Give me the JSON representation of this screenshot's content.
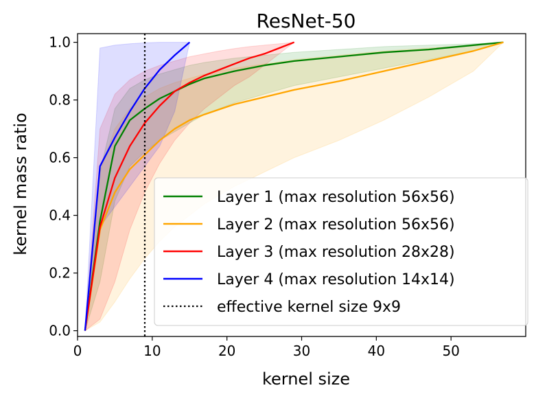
{
  "chart_data": {
    "type": "line",
    "title": "ResNet-50",
    "xlabel": "kernel size",
    "ylabel": "kernel mass ratio",
    "xlim": [
      0,
      60
    ],
    "ylim": [
      -0.02,
      1.03
    ],
    "xticks": [
      0,
      10,
      20,
      30,
      40,
      50
    ],
    "yticks": [
      0.0,
      0.2,
      0.4,
      0.6,
      0.8,
      1.0
    ],
    "xtick_labels": [
      "0",
      "10",
      "20",
      "30",
      "40",
      "50"
    ],
    "ytick_labels": [
      "0.0",
      "0.2",
      "0.4",
      "0.6",
      "0.8",
      "1.0"
    ],
    "grid": false,
    "legend_position": "lower-right",
    "series": [
      {
        "name": "Layer 1 (max resolution 56x56)",
        "color": "#008000",
        "x": [
          1,
          3,
          5,
          7,
          9,
          11,
          13,
          15,
          17,
          21,
          25,
          29,
          35,
          41,
          47,
          53,
          57
        ],
        "y": [
          0.0,
          0.38,
          0.64,
          0.73,
          0.77,
          0.805,
          0.83,
          0.855,
          0.875,
          0.9,
          0.92,
          0.935,
          0.95,
          0.965,
          0.975,
          0.99,
          1.0
        ],
        "band_lower": [
          0.0,
          0.17,
          0.45,
          0.57,
          0.62,
          0.66,
          0.69,
          0.72,
          0.75,
          0.79,
          0.82,
          0.85,
          0.88,
          0.91,
          0.94,
          0.97,
          1.0
        ],
        "band_upper": [
          0.0,
          0.55,
          0.77,
          0.84,
          0.87,
          0.89,
          0.905,
          0.92,
          0.93,
          0.945,
          0.955,
          0.965,
          0.975,
          0.985,
          0.99,
          0.995,
          1.0
        ]
      },
      {
        "name": "Layer 2 (max resolution 56x56)",
        "color": "#ffa500",
        "x": [
          1,
          3,
          5,
          7,
          9,
          11,
          13,
          15,
          17,
          21,
          25,
          29,
          35,
          41,
          47,
          53,
          57
        ],
        "y": [
          0.0,
          0.35,
          0.48,
          0.56,
          0.61,
          0.66,
          0.7,
          0.73,
          0.75,
          0.785,
          0.81,
          0.835,
          0.865,
          0.9,
          0.935,
          0.97,
          1.0
        ],
        "band_lower": [
          0.0,
          0.03,
          0.1,
          0.18,
          0.25,
          0.31,
          0.36,
          0.4,
          0.44,
          0.5,
          0.55,
          0.6,
          0.66,
          0.73,
          0.81,
          0.9,
          1.0
        ],
        "band_upper": [
          0.0,
          0.55,
          0.7,
          0.77,
          0.81,
          0.84,
          0.86,
          0.875,
          0.89,
          0.91,
          0.925,
          0.94,
          0.955,
          0.97,
          0.98,
          0.99,
          1.0
        ]
      },
      {
        "name": "Layer 3 (max resolution 28x28)",
        "color": "#ff0000",
        "x": [
          1,
          3,
          5,
          7,
          9,
          11,
          13,
          15,
          17,
          19,
          21,
          23,
          25,
          27,
          29
        ],
        "y": [
          0.0,
          0.36,
          0.53,
          0.64,
          0.72,
          0.78,
          0.83,
          0.86,
          0.885,
          0.905,
          0.925,
          0.945,
          0.96,
          0.98,
          1.0
        ],
        "band_lower": [
          0.0,
          0.04,
          0.17,
          0.35,
          0.48,
          0.58,
          0.66,
          0.72,
          0.77,
          0.81,
          0.85,
          0.88,
          0.92,
          0.96,
          1.0
        ],
        "band_upper": [
          0.0,
          0.7,
          0.82,
          0.87,
          0.9,
          0.92,
          0.935,
          0.95,
          0.96,
          0.97,
          0.978,
          0.985,
          0.99,
          0.995,
          1.0
        ]
      },
      {
        "name": "Layer 4 (max resolution 14x14)",
        "color": "#0000ff",
        "x": [
          1,
          3,
          5,
          7,
          9,
          11,
          13,
          15
        ],
        "y": [
          0.0,
          0.57,
          0.67,
          0.76,
          0.84,
          0.905,
          0.955,
          1.0
        ],
        "band_lower": [
          0.0,
          0.36,
          0.43,
          0.5,
          0.57,
          0.64,
          0.76,
          1.0
        ],
        "band_upper": [
          0.0,
          0.98,
          0.99,
          0.995,
          0.998,
          1.0,
          1.0,
          1.0
        ]
      }
    ],
    "reference_lines": [
      {
        "name": "effective kernel size 9x9",
        "orientation": "vertical",
        "x": 9,
        "color": "#000000",
        "style": "dotted"
      }
    ]
  }
}
